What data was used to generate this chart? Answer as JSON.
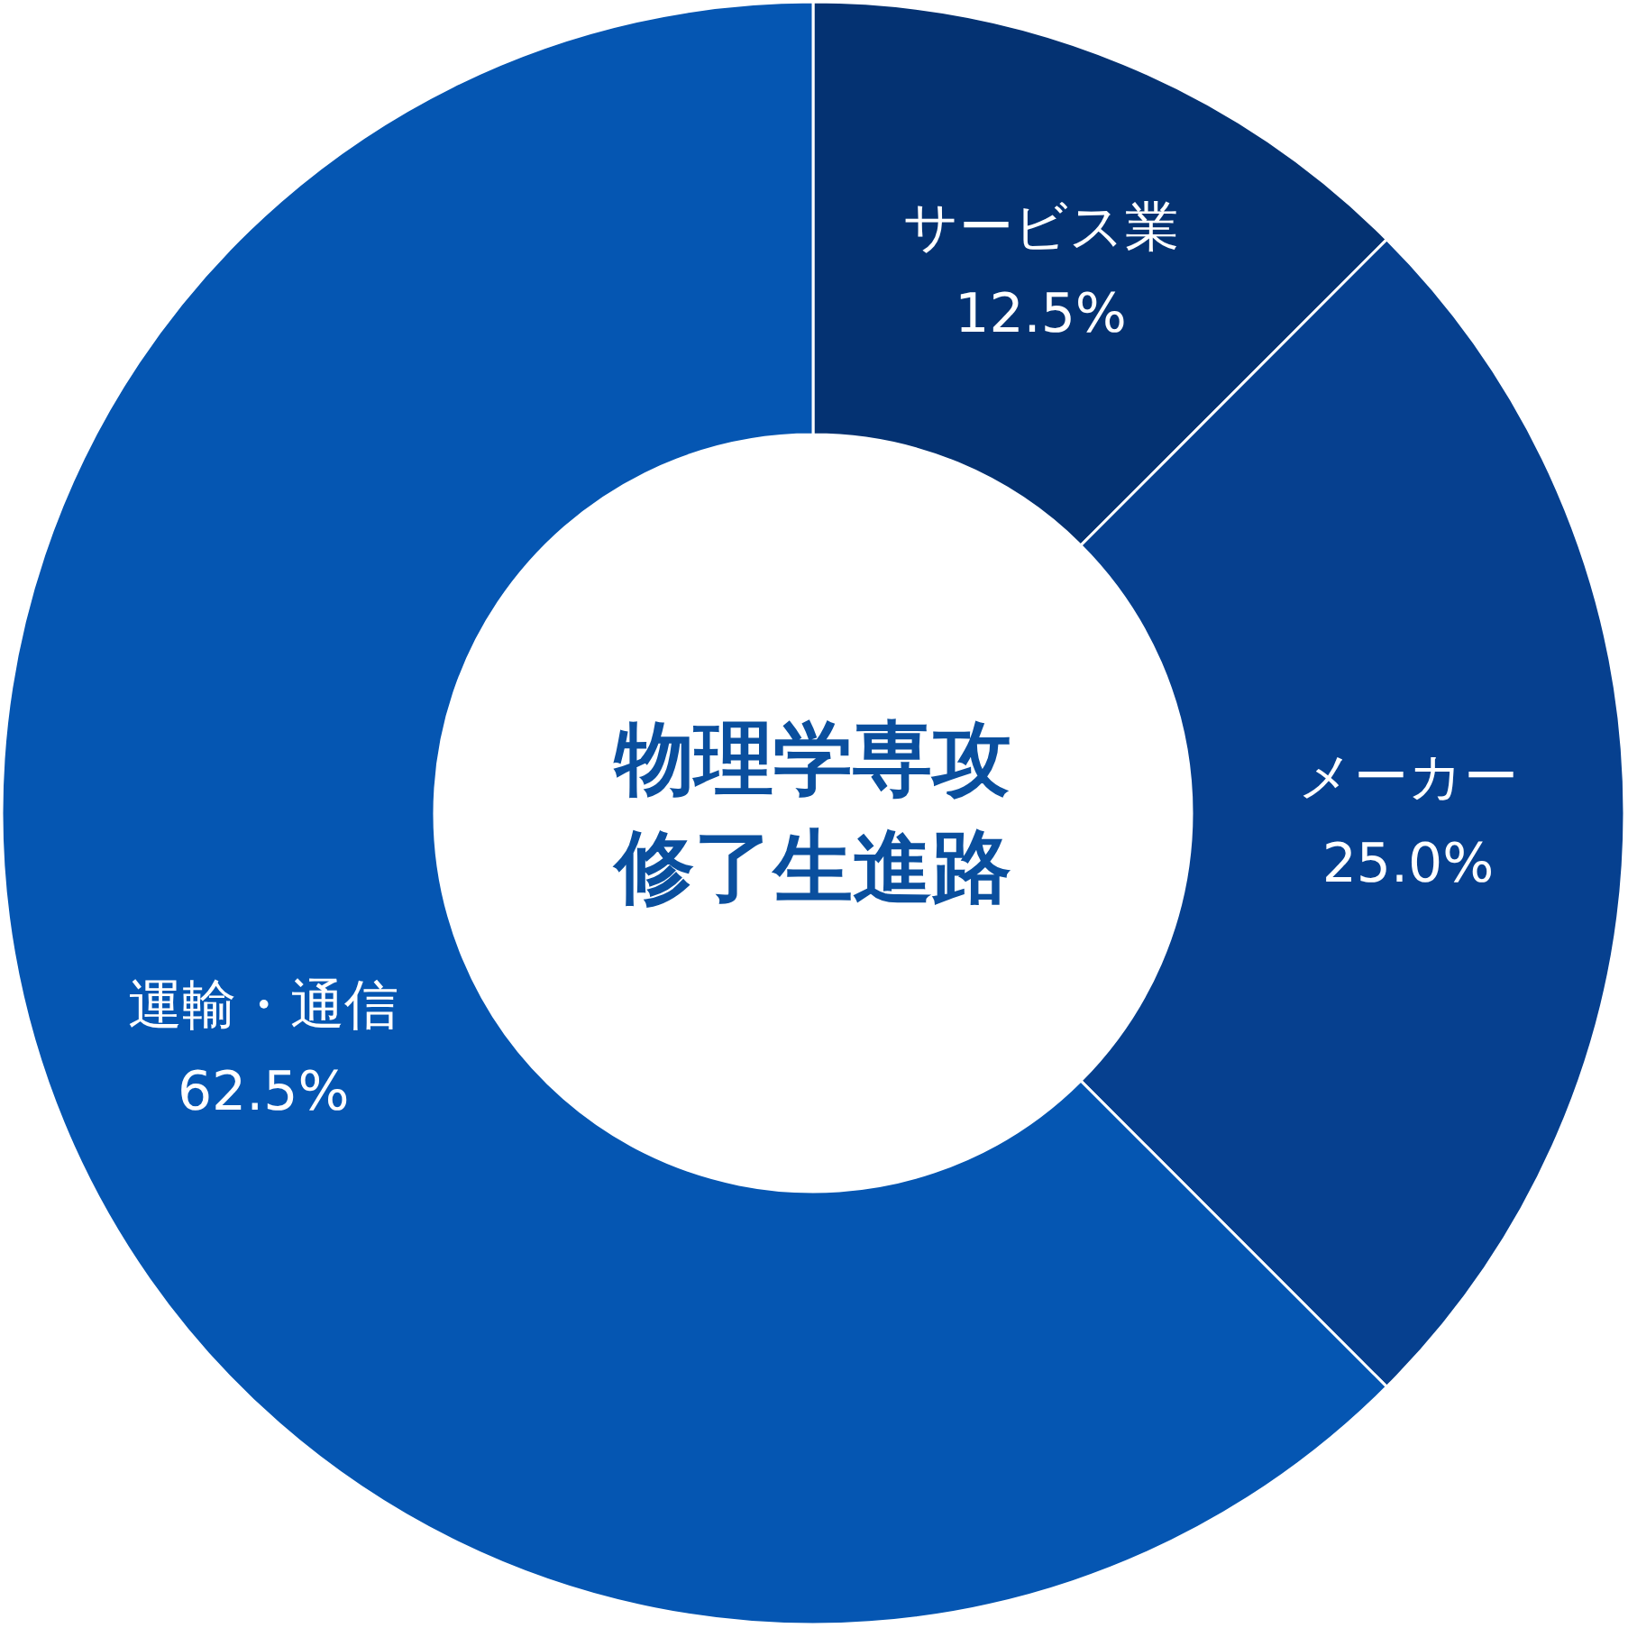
{
  "chart_data": {
    "type": "donut",
    "title": "物理学専攻修了生進路",
    "categories": [
      "サービス業",
      "メーカー",
      "運輸・通信"
    ],
    "values": [
      12.5,
      25.0,
      62.5
    ],
    "value_labels": [
      "12.5%",
      "25.0%",
      "62.5%"
    ],
    "colors": [
      "#043272",
      "#06408f",
      "#0556b2"
    ]
  }
}
